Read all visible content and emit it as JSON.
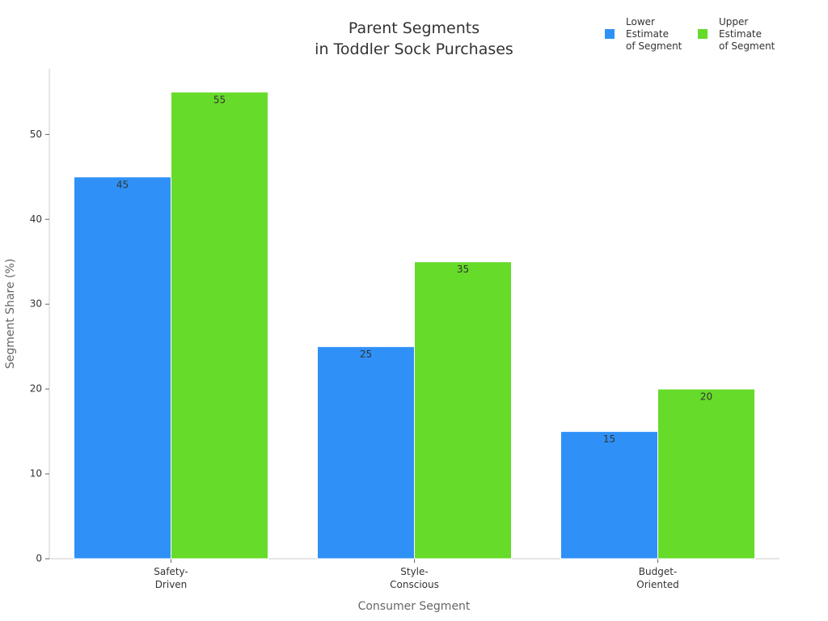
{
  "chart_data": {
    "type": "bar",
    "title": "Parent Segments\nin Toddler Sock Purchases",
    "x_label": "Consumer Segment",
    "y_label": "Segment Share (%)",
    "categories": [
      "Safety-\nDriven",
      "Style-\nConscious",
      "Budget-\nOriented"
    ],
    "series": [
      {
        "name": "Lower\nEstimate\nof Segment",
        "color": "#2f91f7",
        "values": [
          45,
          25,
          15
        ]
      },
      {
        "name": "Upper\nEstimate\nof Segment",
        "color": "#66db29",
        "values": [
          55,
          35,
          20
        ]
      }
    ],
    "ylim": [
      0,
      57.75
    ],
    "yticks": [
      0,
      10,
      20,
      30,
      40,
      50
    ],
    "grid": false,
    "legend": "top-right"
  }
}
